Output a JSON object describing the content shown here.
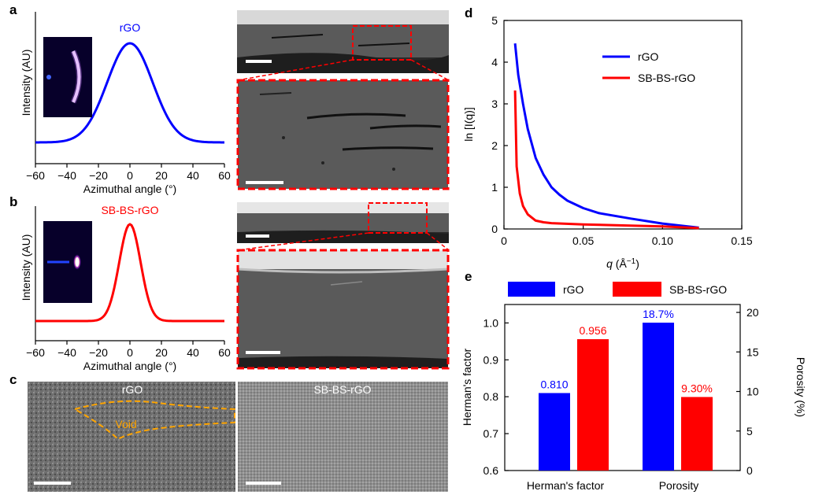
{
  "panels": {
    "a": "a",
    "b": "b",
    "c": "c",
    "d": "d",
    "e": "e"
  },
  "saxs_profiles": {
    "x_ticks": [
      "−60",
      "−40",
      "−20",
      "0",
      "20",
      "40",
      "60"
    ],
    "x_label": "Azimuthal angle (°)",
    "y_label": "Intensity (AU)",
    "top": {
      "title": "rGO",
      "color": "#0000ff",
      "fwhm_deg": 34
    },
    "bottom": {
      "title": "SB-BS-rGO",
      "color": "#ff0000",
      "fwhm_deg": 16
    }
  },
  "tem_labels": {
    "left": "rGO",
    "void": "Void",
    "right": "SB-BS-rGO"
  },
  "chart_data": [
    {
      "type": "line",
      "panel": "d",
      "xlabel_prefix": "q",
      "xlabel_unit": "(Å",
      "xlabel_sup": "−1",
      "xlabel_close": ")",
      "ylabel": "ln [I(q)]",
      "xlim": [
        0,
        0.15
      ],
      "ylim": [
        0,
        5
      ],
      "x_ticks": [
        "0",
        "0.05",
        "0.10",
        "0.15"
      ],
      "y_ticks": [
        "0",
        "1",
        "2",
        "3",
        "4",
        "5"
      ],
      "legend": "top-right",
      "series": [
        {
          "name": "rGO",
          "color": "#0000ff",
          "x": [
            0.007,
            0.009,
            0.012,
            0.015,
            0.02,
            0.025,
            0.03,
            0.035,
            0.04,
            0.05,
            0.06,
            0.08,
            0.1,
            0.123
          ],
          "y": [
            4.45,
            3.7,
            3.0,
            2.4,
            1.7,
            1.3,
            1.0,
            0.82,
            0.68,
            0.5,
            0.38,
            0.25,
            0.13,
            0.03
          ]
        },
        {
          "name": "SB-BS-rGO",
          "color": "#ff0000",
          "x": [
            0.007,
            0.008,
            0.01,
            0.012,
            0.015,
            0.02,
            0.025,
            0.03,
            0.05,
            0.08,
            0.1,
            0.123
          ],
          "y": [
            3.32,
            1.5,
            0.85,
            0.55,
            0.35,
            0.2,
            0.16,
            0.14,
            0.11,
            0.08,
            0.06,
            0.02
          ]
        }
      ]
    },
    {
      "type": "bar",
      "panel": "e",
      "categories": [
        "Herman's factor",
        "Porosity"
      ],
      "ylabel": "Herman's factor",
      "ylabel_right": "Porosity (%)",
      "ylim": [
        0.6,
        1.05
      ],
      "ylim_right": [
        0,
        21
      ],
      "y_ticks": [
        "0.6",
        "0.7",
        "0.8",
        "0.9",
        "1.0"
      ],
      "y_ticks_right": [
        "0",
        "5",
        "10",
        "15",
        "20"
      ],
      "legend": "top",
      "series": [
        {
          "name": "rGO",
          "color": "#0000ff",
          "herman": 0.81,
          "porosity": 18.7,
          "labels": [
            "0.810",
            "18.7%"
          ]
        },
        {
          "name": "SB-BS-rGO",
          "color": "#ff0000",
          "herman": 0.956,
          "porosity": 9.3,
          "labels": [
            "0.956",
            "9.30%"
          ]
        }
      ]
    }
  ]
}
